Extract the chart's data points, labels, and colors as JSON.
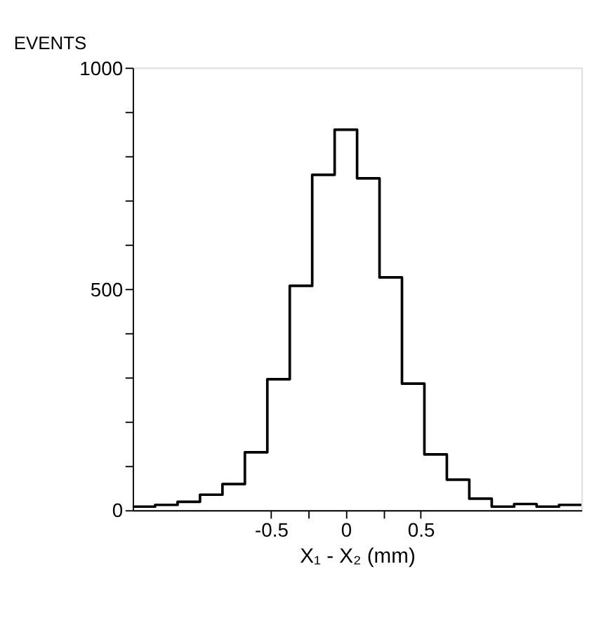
{
  "chart_data": {
    "type": "histogram",
    "xlabel": "X₁ - X₂ (mm)",
    "ylabel": "EVENTS",
    "bins": [
      -1.425,
      -1.275,
      -1.125,
      -0.975,
      -0.825,
      -0.675,
      -0.525,
      -0.375,
      -0.225,
      -0.075,
      0.075,
      0.225,
      0.375,
      0.525,
      0.675,
      0.825,
      0.975,
      1.125,
      1.275,
      1.425,
      1.575
    ],
    "values": [
      8,
      12,
      19,
      35,
      59,
      131,
      296,
      507,
      758,
      860,
      750,
      526,
      286,
      126,
      69,
      26,
      8,
      14,
      8,
      12
    ],
    "color": "#000000",
    "xlim": [
      -1.425,
      1.575
    ],
    "xticks": [
      -0.5,
      {
        "value": -0.25,
        "label": null
      },
      0,
      {
        "value": 0.25,
        "label": null
      },
      0.5
    ],
    "ylim": [
      0,
      1000
    ],
    "yticks": [
      0,
      {
        "value": 100,
        "label": null
      },
      {
        "value": 200,
        "label": null
      },
      {
        "value": 300,
        "label": null
      },
      {
        "value": 400,
        "label": null
      },
      500,
      {
        "value": 600,
        "label": null
      },
      {
        "value": 700,
        "label": null
      },
      {
        "value": 800,
        "label": null
      },
      {
        "value": 900,
        "label": null
      },
      1000
    ],
    "grid": false
  }
}
